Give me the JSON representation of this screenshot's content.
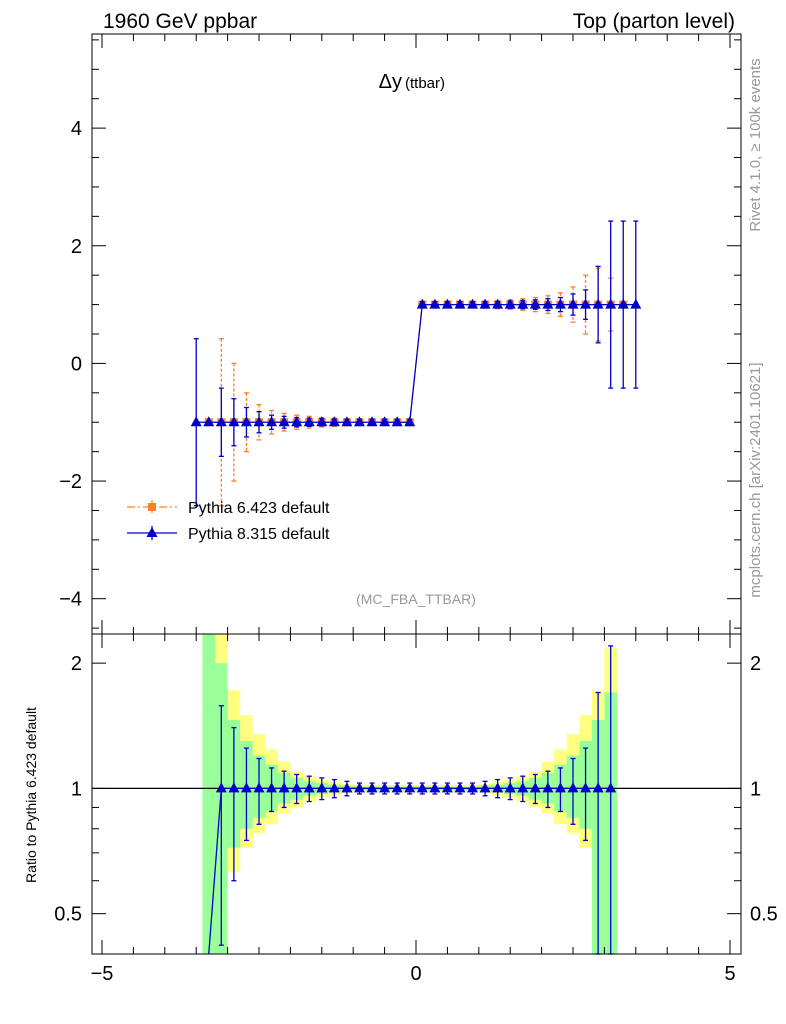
{
  "header": {
    "left": "1960 GeV ppbar",
    "right": "Top (parton level)"
  },
  "side_text": {
    "top": "Rivet 4.1.0, ≥ 100k events",
    "bottom": "mcplots.cern.ch [arXiv:2401.10621]"
  },
  "chart_data": [
    {
      "type": "line",
      "panel": "main",
      "title": "Δy",
      "title_sub": "(ttbar)",
      "watermark": "(MC_FBA_TTBAR)",
      "xlim": [
        -5.0,
        5.0
      ],
      "ylim": [
        -4.6,
        5.6
      ],
      "y_ticks": [
        -4,
        -2,
        0,
        2,
        4
      ],
      "y_tick_labels": [
        "−4",
        "−2",
        "0",
        "2",
        "4"
      ],
      "series": [
        {
          "name": "Pythia 6.423 default",
          "color": "#ff7f27",
          "marker": "square",
          "x": [
            -3.3,
            -3.1,
            -2.9,
            -2.7,
            -2.5,
            -2.3,
            -2.1,
            -1.9,
            -1.7,
            -1.5,
            -1.3,
            -1.1,
            -0.9,
            -0.7,
            -0.5,
            -0.3,
            -0.1,
            0.1,
            0.3,
            0.5,
            0.7,
            0.9,
            1.1,
            1.3,
            1.5,
            1.7,
            1.9,
            2.1,
            2.3,
            2.5,
            2.7,
            2.9,
            3.1,
            3.3
          ],
          "y": [
            -1,
            -1,
            -1,
            -1,
            -1,
            -1,
            -1,
            -1,
            -1,
            -1,
            -1,
            -1,
            -1,
            -1,
            -1,
            -1,
            -1,
            1,
            1,
            1,
            1,
            1,
            1,
            1,
            1,
            1,
            1,
            1,
            1,
            1,
            1,
            1,
            1,
            1
          ],
          "err": [
            null,
            1.42,
            1.0,
            0.5,
            0.3,
            0.2,
            0.15,
            0.12,
            0.1,
            0.08,
            0.07,
            0.06,
            0.05,
            0.05,
            0.05,
            0.05,
            0.05,
            0.05,
            0.05,
            0.05,
            0.05,
            0.05,
            0.06,
            0.07,
            0.08,
            0.1,
            0.12,
            0.15,
            0.2,
            0.3,
            0.5,
            0.62,
            0.45,
            null
          ]
        },
        {
          "name": "Pythia 8.315 default",
          "color": "#0000cc",
          "marker": "triangle",
          "x": [
            -3.5,
            -3.3,
            -3.1,
            -2.9,
            -2.7,
            -2.5,
            -2.3,
            -2.1,
            -1.9,
            -1.7,
            -1.5,
            -1.3,
            -1.1,
            -0.9,
            -0.7,
            -0.5,
            -0.3,
            -0.1,
            0.1,
            0.3,
            0.5,
            0.7,
            0.9,
            1.1,
            1.3,
            1.5,
            1.7,
            1.9,
            2.1,
            2.3,
            2.5,
            2.7,
            2.9,
            3.1,
            3.3,
            3.5
          ],
          "y": [
            -1,
            -1,
            -1,
            -1,
            -1,
            -1,
            -1,
            -1,
            -1,
            -1,
            -1,
            -1,
            -1,
            -1,
            -1,
            -1,
            -1,
            -1,
            1,
            1,
            1,
            1,
            1,
            1,
            1,
            1,
            1,
            1,
            1,
            1,
            1,
            1,
            1,
            1,
            1,
            1
          ],
          "err": [
            1.42,
            null,
            0.58,
            0.4,
            0.25,
            0.18,
            0.12,
            0.1,
            0.08,
            0.07,
            0.06,
            0.05,
            0.05,
            0.05,
            0.05,
            0.05,
            0.05,
            0.05,
            0.05,
            0.05,
            0.05,
            0.05,
            0.05,
            0.05,
            0.05,
            0.06,
            0.07,
            0.08,
            0.1,
            0.12,
            0.18,
            0.25,
            0.65,
            1.42,
            1.42,
            1.42
          ]
        }
      ]
    },
    {
      "type": "line",
      "panel": "ratio",
      "ylabel": "Ratio to Pythia 6.423 default",
      "xlim": [
        -5.0,
        5.0
      ],
      "ylim": [
        0.4,
        2.35
      ],
      "y_ticks": [
        0.5,
        1,
        2
      ],
      "y_tick_labels": [
        "0.5",
        "1",
        "2"
      ],
      "x_ticks": [
        -5,
        0,
        5
      ],
      "x_tick_labels": [
        "−5",
        "0",
        "5"
      ],
      "reference_line": 1,
      "bands": {
        "x_edges": [
          -3.4,
          -3.2,
          -3.0,
          -2.8,
          -2.6,
          -2.4,
          -2.2,
          -2.0,
          -1.8,
          -1.6,
          -1.4,
          -1.2,
          -1.0,
          -0.8,
          -0.6,
          -0.4,
          -0.2,
          0.0,
          0.2,
          0.4,
          0.6,
          0.8,
          1.0,
          1.2,
          1.4,
          1.6,
          1.8,
          2.0,
          2.2,
          2.4,
          2.6,
          2.8,
          3.0,
          3.2
        ],
        "green_lo": [
          0.3,
          0.3,
          0.72,
          0.8,
          0.85,
          0.88,
          0.92,
          0.94,
          0.96,
          0.97,
          0.98,
          0.985,
          0.99,
          0.99,
          0.99,
          0.99,
          0.99,
          0.99,
          0.99,
          0.99,
          0.99,
          0.99,
          0.985,
          0.98,
          0.97,
          0.96,
          0.94,
          0.92,
          0.88,
          0.85,
          0.8,
          0.3,
          0.3
        ],
        "green_hi": [
          2.35,
          2.0,
          1.46,
          1.3,
          1.2,
          1.14,
          1.09,
          1.06,
          1.04,
          1.03,
          1.02,
          1.015,
          1.01,
          1.01,
          1.01,
          1.01,
          1.01,
          1.01,
          1.01,
          1.01,
          1.01,
          1.01,
          1.015,
          1.02,
          1.03,
          1.04,
          1.06,
          1.09,
          1.14,
          1.2,
          1.3,
          1.46,
          1.7
        ],
        "yellow_lo": [
          0.3,
          0.3,
          0.63,
          0.72,
          0.78,
          0.82,
          0.87,
          0.9,
          0.93,
          0.95,
          0.96,
          0.975,
          0.98,
          0.98,
          0.98,
          0.98,
          0.98,
          0.98,
          0.98,
          0.98,
          0.98,
          0.98,
          0.975,
          0.96,
          0.95,
          0.93,
          0.9,
          0.87,
          0.82,
          0.78,
          0.72,
          0.63,
          0.3
        ],
        "yellow_hi": [
          2.35,
          2.35,
          1.72,
          1.5,
          1.35,
          1.24,
          1.16,
          1.1,
          1.07,
          1.05,
          1.035,
          1.025,
          1.02,
          1.02,
          1.02,
          1.02,
          1.02,
          1.02,
          1.02,
          1.02,
          1.02,
          1.02,
          1.025,
          1.035,
          1.05,
          1.07,
          1.1,
          1.16,
          1.24,
          1.35,
          1.5,
          1.72,
          2.18
        ]
      },
      "series": [
        {
          "name": "Pythia 8.315 default",
          "color": "#0000cc",
          "marker": "triangle",
          "x": [
            -3.3,
            -3.1,
            -2.9,
            -2.7,
            -2.5,
            -2.3,
            -2.1,
            -1.9,
            -1.7,
            -1.5,
            -1.3,
            -1.1,
            -0.9,
            -0.7,
            -0.5,
            -0.3,
            -0.1,
            0.1,
            0.3,
            0.5,
            0.7,
            0.9,
            1.1,
            1.3,
            1.5,
            1.7,
            1.9,
            2.1,
            2.3,
            2.5,
            2.7,
            2.9,
            3.1
          ],
          "y": [
            0.4,
            1,
            1,
            1,
            1,
            1,
            1,
            1,
            1,
            1,
            1,
            1,
            1,
            1,
            1,
            1,
            1,
            1,
            1,
            1,
            1,
            1,
            1,
            1,
            1,
            1,
            1,
            1,
            1,
            1,
            1,
            1,
            1
          ],
          "err": [
            null,
            0.58,
            0.4,
            0.25,
            0.18,
            0.12,
            0.1,
            0.08,
            0.07,
            0.06,
            0.05,
            0.04,
            0.03,
            0.03,
            0.03,
            0.03,
            0.03,
            0.03,
            0.03,
            0.03,
            0.03,
            0.03,
            0.04,
            0.05,
            0.06,
            0.07,
            0.08,
            0.1,
            0.12,
            0.18,
            0.25,
            0.7,
            1.2
          ]
        }
      ]
    }
  ]
}
